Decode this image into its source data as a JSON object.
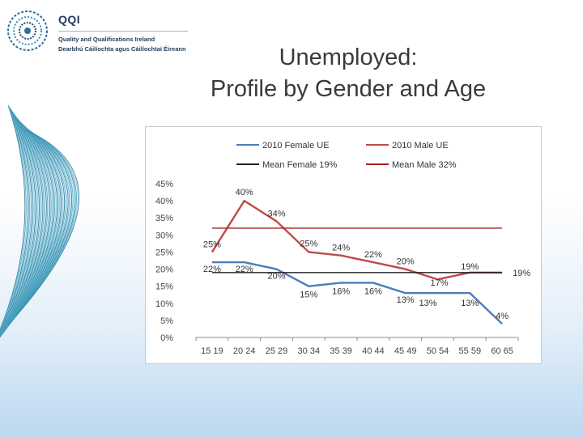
{
  "logo": {
    "name": "QQI",
    "line1": "Quality and Qualifications Ireland",
    "line2": "Dearbhú Cáilíochta agus Cáilíochtaí Éireann"
  },
  "slide": {
    "title_line1": "Unemployed:",
    "title_line2": "Profile by Gender and Age"
  },
  "chart_data": {
    "type": "line",
    "title": "",
    "xlabel": "",
    "ylabel": "",
    "ylim": [
      0,
      45
    ],
    "yticks": [
      "0%",
      "5%",
      "10%",
      "15%",
      "20%",
      "25%",
      "30%",
      "35%",
      "40%",
      "45%"
    ],
    "categories": [
      "15 19",
      "20 24",
      "25 29",
      "30 34",
      "35 39",
      "40 44",
      "45 49",
      "50 54",
      "55 59",
      "60 65"
    ],
    "legend_position": "top",
    "series": [
      {
        "name": "2010 Female UE",
        "color": "#4a7ebb",
        "values": [
          22,
          22,
          20,
          15,
          16,
          16,
          13,
          13,
          13,
          4
        ],
        "labels": [
          "22%",
          "22%",
          "20%",
          "15%",
          "16%",
          "16%",
          "13%",
          "13%",
          "13%",
          "4%"
        ]
      },
      {
        "name": "2010 Male UE",
        "color": "#be4b48",
        "values": [
          25,
          40,
          34,
          25,
          24,
          22,
          20,
          17,
          19,
          19
        ],
        "labels": [
          "25%",
          "40%",
          "34%",
          "25%",
          "24%",
          "22%",
          "20%",
          "17%",
          "19%",
          "19%"
        ]
      },
      {
        "name": "Mean Female 19%",
        "color": "#1f1f1f",
        "values": [
          19,
          19,
          19,
          19,
          19,
          19,
          19,
          19,
          19,
          19
        ]
      },
      {
        "name": "Mean Male 32%",
        "color": "#a02020",
        "values": [
          32,
          32,
          32,
          32,
          32,
          32,
          32,
          32,
          32,
          32
        ]
      }
    ]
  }
}
